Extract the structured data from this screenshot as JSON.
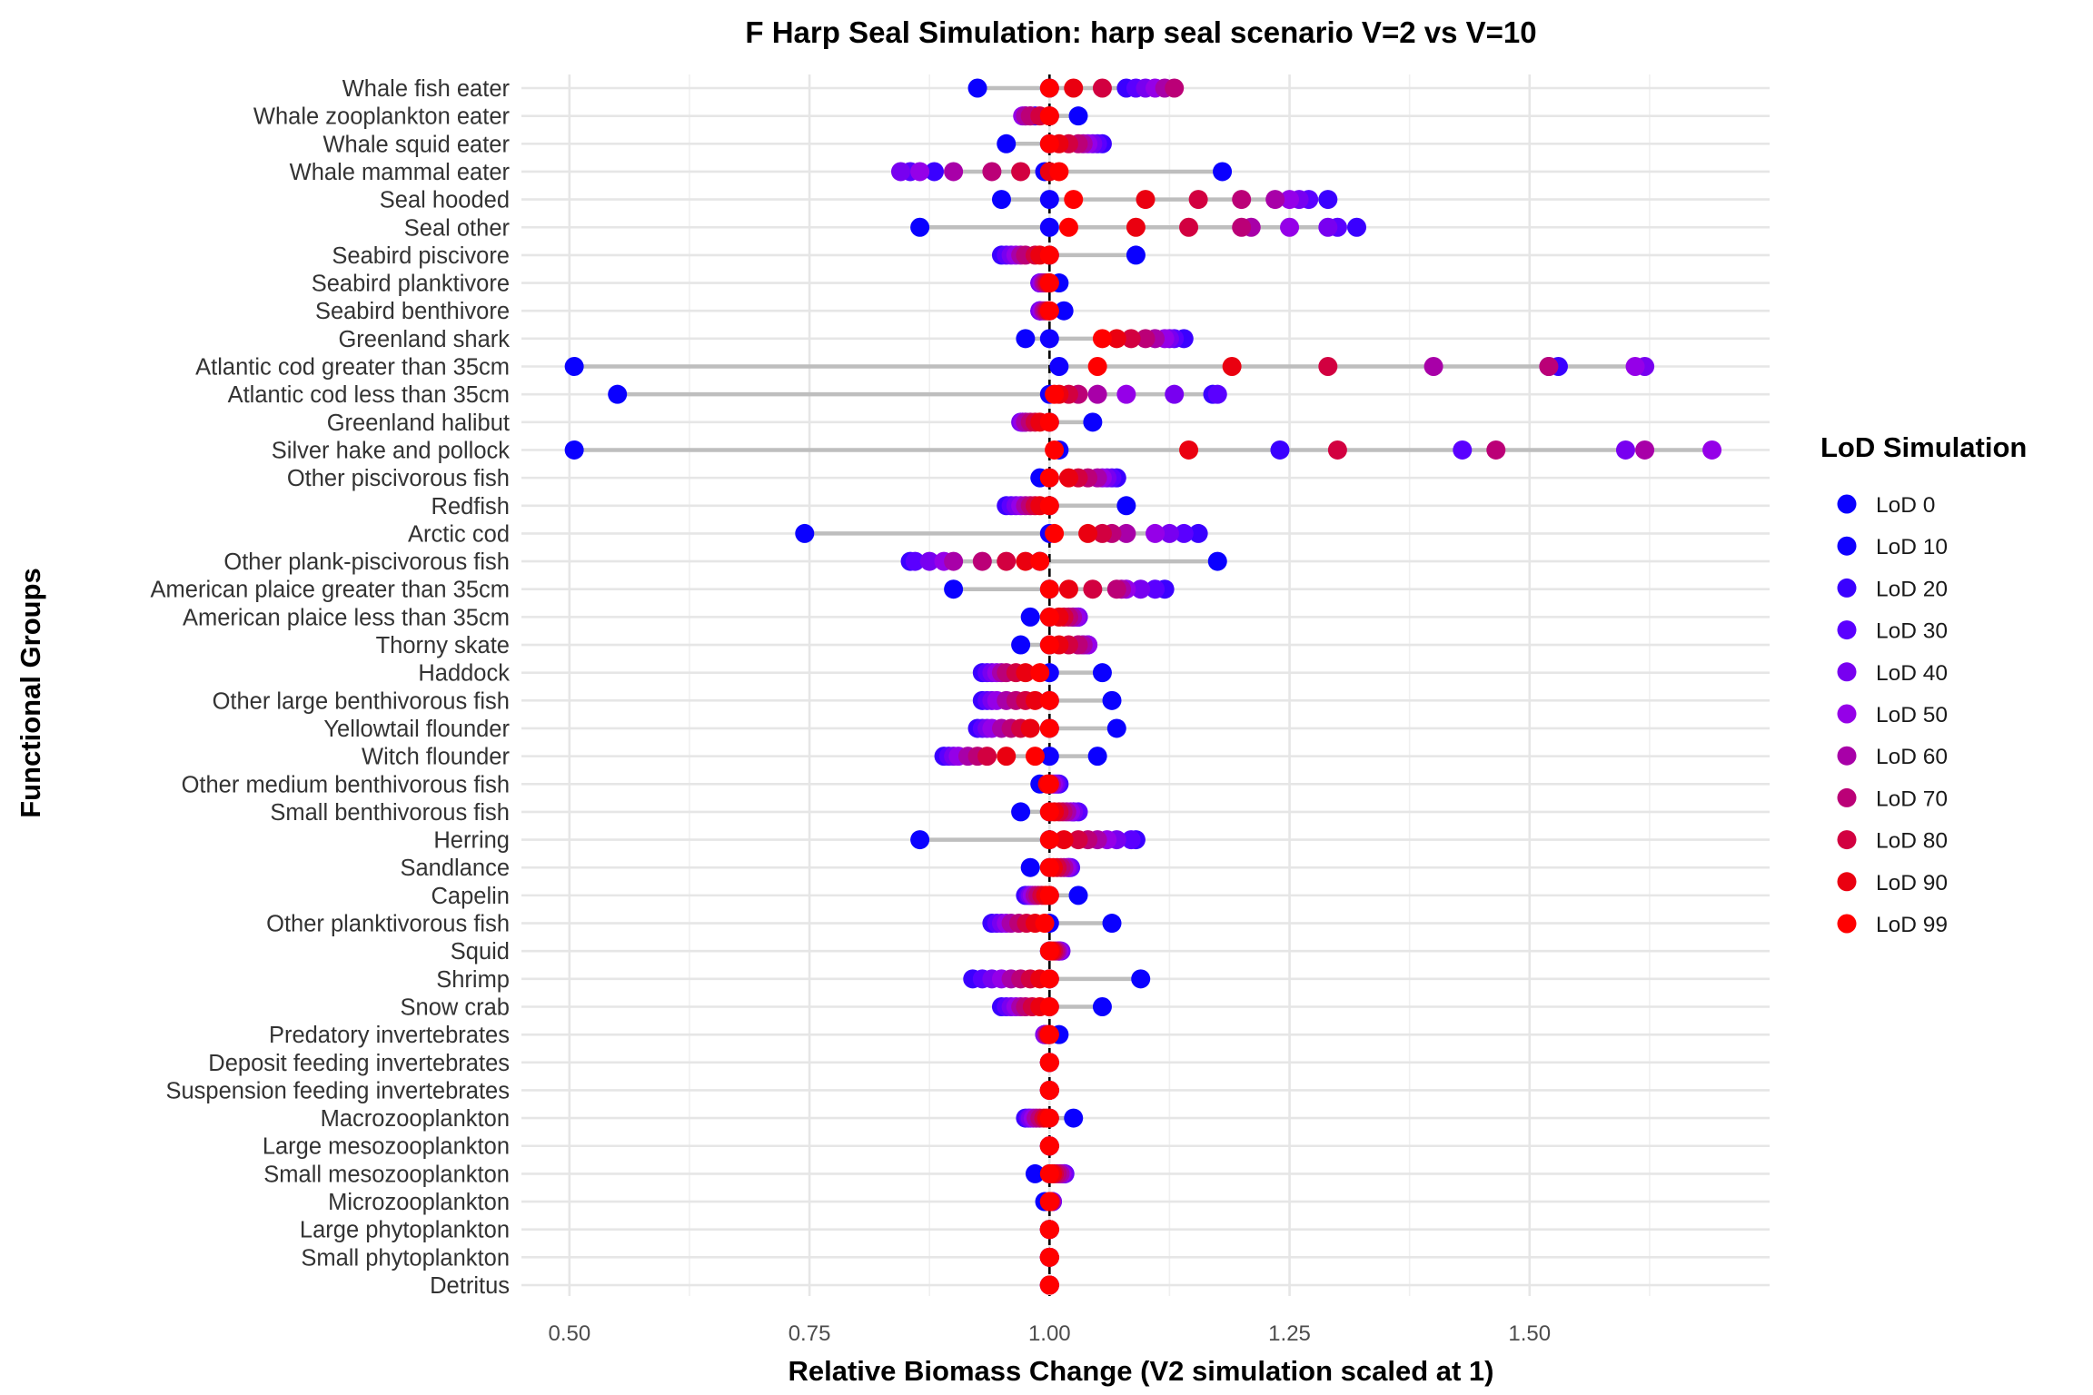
{
  "chart_data": {
    "type": "scatter",
    "title": "F Harp Seal Simulation: harp seal scenario V=2 vs V=10",
    "xlabel": "Relative Biomass Change (V2 simulation scaled at 1)",
    "ylabel": "Functional Groups",
    "xlim": [
      0.45,
      1.75
    ],
    "xticks": [
      "0.50",
      "0.75",
      "1.00",
      "1.25",
      "1.50"
    ],
    "x_tick_values": [
      0.5,
      0.75,
      1.0,
      1.25,
      1.5
    ],
    "x_minor_ticks": [
      0.625,
      0.875,
      1.125,
      1.375,
      1.625
    ],
    "reference_line": 1.0,
    "grid": true,
    "legend": {
      "title": "LoD Simulation",
      "placement": "right",
      "entries": [
        "LoD 0",
        "LoD 10",
        "LoD 20",
        "LoD 30",
        "LoD 40",
        "LoD 50",
        "LoD 60",
        "LoD 70",
        "LoD 80",
        "LoD 90",
        "LoD 99"
      ],
      "colors": [
        "#0a00ff",
        "#1000ff",
        "#3a00ff",
        "#5a00ff",
        "#7800f0",
        "#9500e8",
        "#a800a8",
        "#bb0077",
        "#d20040",
        "#ea0010",
        "#ff0000"
      ]
    },
    "categories": [
      "Whale fish eater",
      "Whale zooplankton eater",
      "Whale squid eater",
      "Whale mammal eater",
      "Seal hooded",
      "Seal other",
      "Seabird piscivore",
      "Seabird planktivore",
      "Seabird benthivore",
      "Greenland shark",
      "Atlantic cod greater than 35cm",
      "Atlantic cod less than 35cm",
      "Greenland halibut",
      "Silver hake and pollock",
      "Other piscivorous fish",
      "Redfish",
      "Arctic cod",
      "Other plank-piscivorous fish",
      "American plaice greater than 35cm",
      "American plaice less than 35cm",
      "Thorny skate",
      "Haddock",
      "Other large benthivorous fish",
      "Yellowtail flounder",
      "Witch flounder",
      "Other medium benthivorous fish",
      "Small benthivorous fish",
      "Herring",
      "Sandlance",
      "Capelin",
      "Other planktivorous fish",
      "Squid",
      "Shrimp",
      "Snow crab",
      "Predatory invertebrates",
      "Deposit feeding invertebrates",
      "Suspension feeding invertebrates",
      "Macrozooplankton",
      "Large mesozooplankton",
      "Small mesozooplankton",
      "Microzooplankton",
      "Large phytoplankton",
      "Small phytoplankton",
      "Detritus"
    ],
    "series_values": [
      [
        0.925,
        1.0,
        1.08,
        1.09,
        1.1,
        1.11,
        1.12,
        1.13,
        1.055,
        1.025,
        1.0
      ],
      [
        1.03,
        1.0,
        0.985,
        0.98,
        0.975,
        0.972,
        0.975,
        0.98,
        0.99,
        1.0,
        1.0
      ],
      [
        0.955,
        1.0,
        1.055,
        1.05,
        1.045,
        1.04,
        1.035,
        1.03,
        1.02,
        1.01,
        1.0
      ],
      [
        1.18,
        0.995,
        0.88,
        0.855,
        0.845,
        0.865,
        0.9,
        0.94,
        0.97,
        1.0,
        1.01
      ],
      [
        0.95,
        1.0,
        1.29,
        1.27,
        1.26,
        1.25,
        1.235,
        1.2,
        1.155,
        1.1,
        1.025
      ],
      [
        0.865,
        1.0,
        1.32,
        1.3,
        1.29,
        1.25,
        1.21,
        1.2,
        1.145,
        1.09,
        1.02
      ],
      [
        1.09,
        1.0,
        0.95,
        0.955,
        0.96,
        0.965,
        0.97,
        0.975,
        0.985,
        0.99,
        1.0
      ],
      [
        1.01,
        1.0,
        0.99,
        0.99,
        0.99,
        0.992,
        0.994,
        0.996,
        0.998,
        1.0,
        1.0
      ],
      [
        1.015,
        1.0,
        0.99,
        0.99,
        0.99,
        0.992,
        0.994,
        0.996,
        0.998,
        1.0,
        1.0
      ],
      [
        0.975,
        1.0,
        1.14,
        1.13,
        1.125,
        1.12,
        1.11,
        1.1,
        1.085,
        1.07,
        1.055
      ],
      [
        0.505,
        1.01,
        1.53,
        1.52,
        1.62,
        1.61,
        1.4,
        1.52,
        1.29,
        1.19,
        1.05
      ],
      [
        0.55,
        1.0,
        1.17,
        1.175,
        1.13,
        1.08,
        1.05,
        1.03,
        1.02,
        1.01,
        1.005
      ],
      [
        1.045,
        1.0,
        0.975,
        0.972,
        0.97,
        0.972,
        0.975,
        0.98,
        0.985,
        0.99,
        1.0
      ],
      [
        0.505,
        1.01,
        1.24,
        1.43,
        1.6,
        1.69,
        1.62,
        1.465,
        1.3,
        1.145,
        1.005
      ],
      [
        0.99,
        1.0,
        1.07,
        1.065,
        1.06,
        1.055,
        1.05,
        1.04,
        1.03,
        1.02,
        1.0
      ],
      [
        1.08,
        1.0,
        0.955,
        0.96,
        0.965,
        0.97,
        0.975,
        0.98,
        0.985,
        0.99,
        1.0
      ],
      [
        0.745,
        1.0,
        1.155,
        1.14,
        1.125,
        1.11,
        1.08,
        1.065,
        1.055,
        1.04,
        1.005
      ],
      [
        1.175,
        0.99,
        0.855,
        0.86,
        0.875,
        0.89,
        0.9,
        0.93,
        0.955,
        0.975,
        0.99
      ],
      [
        0.9,
        1.0,
        1.12,
        1.11,
        1.095,
        1.08,
        1.075,
        1.07,
        1.045,
        1.02,
        1.0
      ],
      [
        0.98,
        1.0,
        1.025,
        1.03,
        1.03,
        1.028,
        1.024,
        1.02,
        1.015,
        1.01,
        1.0
      ],
      [
        0.97,
        1.0,
        1.04,
        1.035,
        1.03,
        1.04,
        1.035,
        1.03,
        1.02,
        1.01,
        1.0
      ],
      [
        1.055,
        1.0,
        0.93,
        0.935,
        0.94,
        0.945,
        0.95,
        0.955,
        0.965,
        0.975,
        0.99
      ],
      [
        1.065,
        1.0,
        0.93,
        0.935,
        0.94,
        0.945,
        0.955,
        0.965,
        0.975,
        0.985,
        1.0
      ],
      [
        1.07,
        1.0,
        0.925,
        0.93,
        0.935,
        0.94,
        0.95,
        0.96,
        0.97,
        0.98,
        1.0
      ],
      [
        1.05,
        1.0,
        0.89,
        0.895,
        0.9,
        0.905,
        0.915,
        0.925,
        0.935,
        0.955,
        0.985
      ],
      [
        0.99,
        1.0,
        1.01,
        1.008,
        1.006,
        1.004,
        1.002,
        1.0,
        0.998,
        0.998,
        1.0
      ],
      [
        0.97,
        1.0,
        1.025,
        1.03,
        1.025,
        1.022,
        1.018,
        1.014,
        1.01,
        1.005,
        1.0
      ],
      [
        0.865,
        1.0,
        1.09,
        1.085,
        1.07,
        1.06,
        1.05,
        1.04,
        1.03,
        1.015,
        1.0
      ],
      [
        0.98,
        1.0,
        1.02,
        1.022,
        1.02,
        1.018,
        1.015,
        1.012,
        1.008,
        1.004,
        1.0
      ],
      [
        1.03,
        1.0,
        0.975,
        0.978,
        0.98,
        0.982,
        0.985,
        0.988,
        0.992,
        0.996,
        1.0
      ],
      [
        1.065,
        1.0,
        0.94,
        0.945,
        0.95,
        0.955,
        0.96,
        0.968,
        0.976,
        0.985,
        0.995
      ],
      [
        1.0,
        1.0,
        1.01,
        1.01,
        1.012,
        1.01,
        1.008,
        1.006,
        1.004,
        1.002,
        1.0
      ],
      [
        1.095,
        1.0,
        0.92,
        0.93,
        0.94,
        0.95,
        0.96,
        0.97,
        0.98,
        0.99,
        1.0
      ],
      [
        1.055,
        1.0,
        0.95,
        0.955,
        0.96,
        0.965,
        0.97,
        0.975,
        0.982,
        0.99,
        1.0
      ],
      [
        1.01,
        1.0,
        0.995,
        0.995,
        0.995,
        0.996,
        0.997,
        0.998,
        0.999,
        1.0,
        1.0
      ],
      [
        1.0,
        1.0,
        1.0,
        1.0,
        1.0,
        1.0,
        1.0,
        1.0,
        1.0,
        1.0,
        1.0
      ],
      [
        1.0,
        1.0,
        1.0,
        1.0,
        1.0,
        1.0,
        1.0,
        1.0,
        1.0,
        1.0,
        1.0
      ],
      [
        1.025,
        1.0,
        0.975,
        0.978,
        0.98,
        0.983,
        0.986,
        0.99,
        0.994,
        0.997,
        1.0
      ],
      [
        1.0,
        1.0,
        1.0,
        1.0,
        1.0,
        1.0,
        1.0,
        1.0,
        1.0,
        1.0,
        1.0
      ],
      [
        0.985,
        1.0,
        1.015,
        1.016,
        1.015,
        1.013,
        1.011,
        1.008,
        1.005,
        1.003,
        1.0
      ],
      [
        0.995,
        1.0,
        1.003,
        1.003,
        1.003,
        1.002,
        1.002,
        1.001,
        1.001,
        1.0,
        1.0
      ],
      [
        1.0,
        1.0,
        1.0,
        1.0,
        1.0,
        1.0,
        1.0,
        1.0,
        1.0,
        1.0,
        1.0
      ],
      [
        1.0,
        1.0,
        1.0,
        1.0,
        1.0,
        1.0,
        1.0,
        1.0,
        1.0,
        1.0,
        1.0
      ],
      [
        1.0,
        1.0,
        1.0,
        1.0,
        1.0,
        1.0,
        1.0,
        1.0,
        1.0,
        1.0,
        1.0
      ]
    ]
  }
}
